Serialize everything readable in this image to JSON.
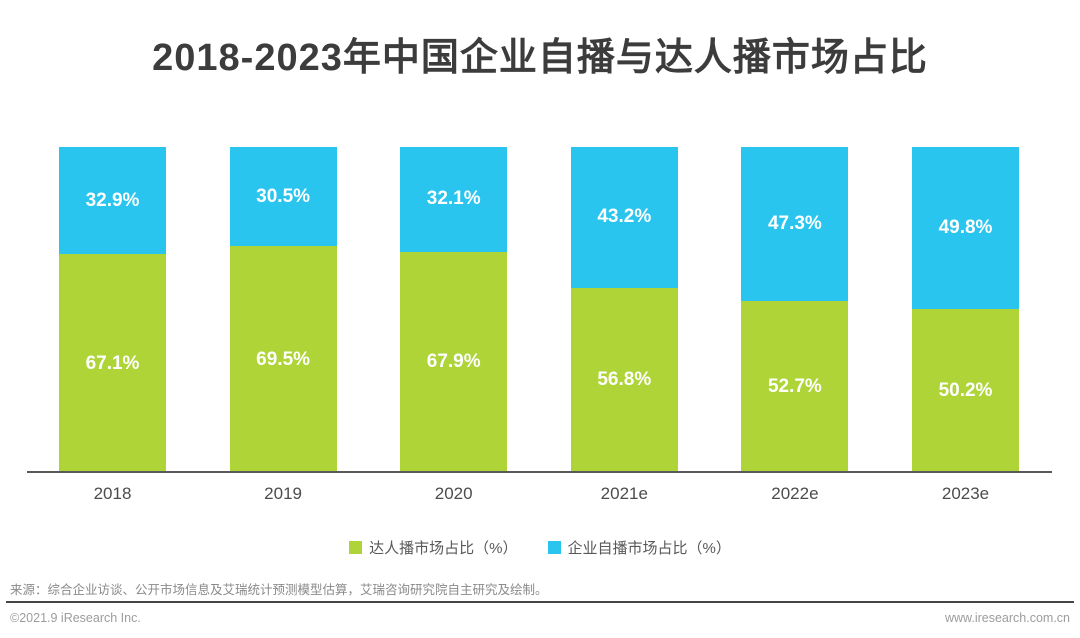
{
  "title": "2018-2023年中国企业自播与达人播市场占比",
  "chart_data": {
    "type": "bar",
    "stacked": true,
    "percent_stacked": true,
    "title": "2018-2023年中国企业自播与达人播市场占比",
    "categories": [
      "2018",
      "2019",
      "2020",
      "2021e",
      "2022e",
      "2023e"
    ],
    "series": [
      {
        "name": "达人播市场占比（%）",
        "color": "#aed437",
        "values": [
          67.1,
          69.5,
          67.9,
          56.8,
          52.7,
          50.2
        ]
      },
      {
        "name": "企业自播市场占比（%）",
        "color": "#29c5ee",
        "values": [
          32.9,
          30.5,
          32.1,
          43.2,
          47.3,
          49.8
        ]
      }
    ],
    "ylim": [
      0,
      100
    ],
    "grid": false,
    "legend_position": "bottom",
    "data_labels": "inside-center, white bold, format {value}%"
  },
  "legend": {
    "items": [
      {
        "label": "达人播市场占比（%）",
        "color": "#aed437"
      },
      {
        "label": "企业自播市场占比（%）",
        "color": "#29c5ee"
      }
    ]
  },
  "source_note": "来源：综合企业访谈、公开市场信息及艾瑞统计预测模型估算，艾瑞咨询研究院自主研究及绘制。",
  "footer": {
    "copyright": "©2021.9 iResearch Inc.",
    "website": "www.iresearch.com.cn"
  },
  "colors": {
    "kol_green": "#aed437",
    "enterprise_blue": "#29c5ee",
    "axis_line": "#58595b",
    "title_text": "#3c3c3c"
  }
}
